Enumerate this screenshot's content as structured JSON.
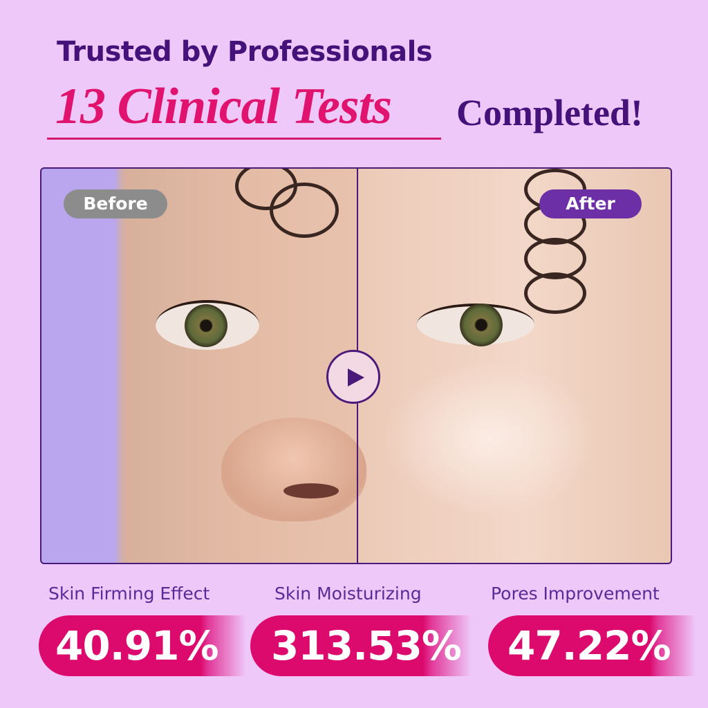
{
  "header": {
    "subtitle": "Trusted by Professionals",
    "highlight": "13 Clinical Tests",
    "title_end": "Completed!"
  },
  "comparison": {
    "before_label": "Before",
    "after_label": "After",
    "play_icon": "play-icon"
  },
  "stats": [
    {
      "label": "Skin Firming Effect",
      "value": "40.91%"
    },
    {
      "label": "Skin Moisturizing",
      "value": "313.53%"
    },
    {
      "label": "Pores Improvement",
      "value": "47.22%"
    }
  ],
  "colors": {
    "background": "#efc8fa",
    "accent_pink": "#dc0a6c",
    "accent_purple": "#45127a"
  }
}
